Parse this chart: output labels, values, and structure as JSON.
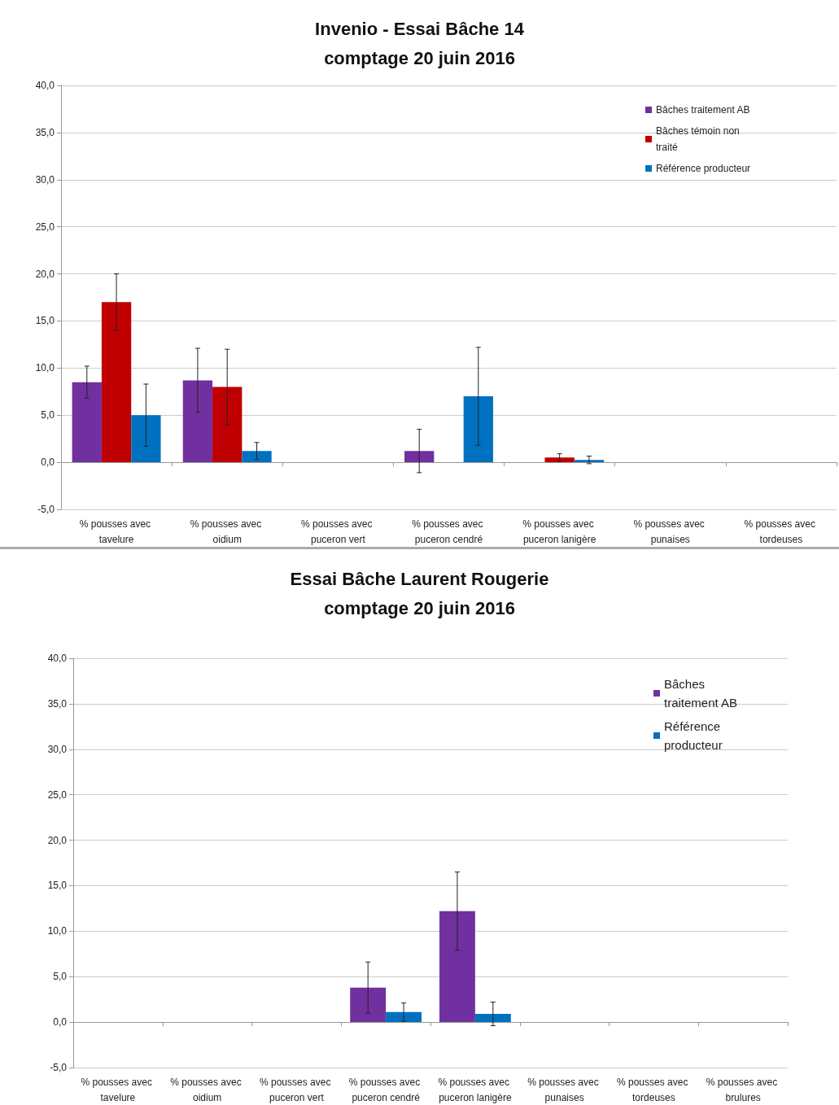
{
  "chart_data": [
    {
      "type": "bar",
      "title": "Invenio - Essai Bâche 14\ncomptage 20 juin 2016",
      "categories": [
        "% pousses avec tavelure",
        "% pousses avec oidium",
        "% pousses avec puceron vert",
        "% pousses avec puceron cendré",
        "% pousses avec puceron lanigère",
        "% pousses avec punaises",
        "% pousses avec tordeuses"
      ],
      "series": [
        {
          "name": "Bâches traitement AB",
          "color": "#7030a0",
          "values": [
            8.5,
            8.7,
            null,
            1.2,
            null,
            null,
            null
          ],
          "errors": [
            1.7,
            3.4,
            null,
            2.3,
            null,
            null,
            null
          ]
        },
        {
          "name": "Bâches témoin non traité",
          "color": "#c00000",
          "values": [
            17.0,
            8.0,
            null,
            null,
            0.5,
            null,
            null
          ],
          "errors": [
            3.0,
            4.0,
            null,
            null,
            0.4,
            null,
            null
          ]
        },
        {
          "name": "Référence producteur",
          "color": "#0070c0",
          "values": [
            5.0,
            1.2,
            null,
            7.0,
            0.25,
            null,
            null
          ],
          "errors": [
            3.3,
            0.9,
            null,
            5.2,
            0.4,
            null,
            null
          ]
        }
      ],
      "ylim": [
        -5,
        40
      ],
      "yticks": [
        {
          "value": -5,
          "label": "-5,0"
        },
        {
          "value": 0,
          "label": "0,0"
        },
        {
          "value": 5,
          "label": "5,0"
        },
        {
          "value": 10,
          "label": "10,0"
        },
        {
          "value": 15,
          "label": "15,0"
        },
        {
          "value": 20,
          "label": "20,0"
        },
        {
          "value": 25,
          "label": "25,0"
        },
        {
          "value": 30,
          "label": "30,0"
        },
        {
          "value": 35,
          "label": "35,0"
        },
        {
          "value": 40,
          "label": "40,0"
        }
      ],
      "grid": "y",
      "legend": "top right"
    },
    {
      "type": "bar",
      "title": "Essai Bâche Laurent Rougerie\ncomptage 20 juin 2016",
      "categories": [
        "% pousses avec tavelure",
        "% pousses avec oidium",
        "% pousses avec puceron vert",
        "% pousses avec puceron cendré",
        "% pousses avec puceron lanigère",
        "% pousses avec punaises",
        "% pousses avec tordeuses",
        "% pousses avec brulures"
      ],
      "series": [
        {
          "name": "Bâches traitement AB",
          "color": "#7030a0",
          "values": [
            null,
            null,
            null,
            3.8,
            12.2,
            null,
            null,
            null
          ],
          "errors": [
            null,
            null,
            null,
            2.8,
            4.3,
            null,
            null,
            null
          ]
        },
        {
          "name": "Référence producteur",
          "color": "#0070c0",
          "values": [
            null,
            null,
            null,
            1.1,
            0.9,
            null,
            null,
            null
          ],
          "errors": [
            null,
            null,
            null,
            1.0,
            1.3,
            null,
            null,
            null
          ]
        }
      ],
      "ylim": [
        -5,
        40
      ],
      "yticks": [
        {
          "value": -5,
          "label": "-5,0"
        },
        {
          "value": 0,
          "label": "0,0"
        },
        {
          "value": 5,
          "label": "5,0"
        },
        {
          "value": 10,
          "label": "10,0"
        },
        {
          "value": 15,
          "label": "15,0"
        },
        {
          "value": 20,
          "label": "20,0"
        },
        {
          "value": 25,
          "label": "25,0"
        },
        {
          "value": 30,
          "label": "30,0"
        },
        {
          "value": 35,
          "label": "35,0"
        },
        {
          "value": 40,
          "label": "40,0"
        }
      ],
      "grid": "y",
      "legend": "top right"
    }
  ]
}
